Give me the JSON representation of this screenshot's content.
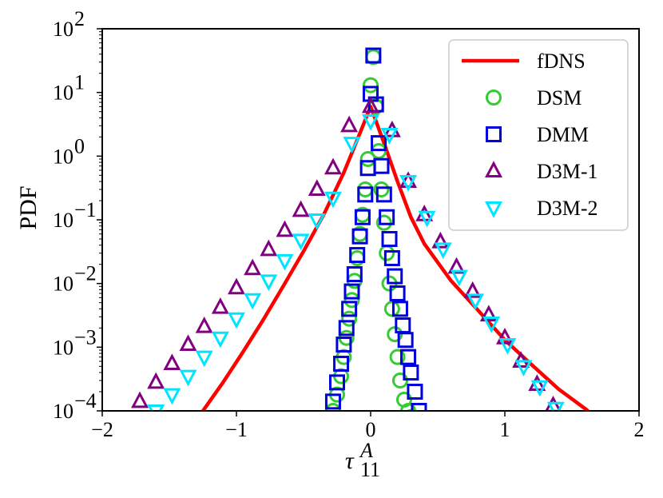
{
  "chart_data": {
    "type": "line",
    "xlabel": "τ",
    "xlabel_sup": "A",
    "xlabel_sub": "11",
    "ylabel": "PDF",
    "xlim": [
      -2,
      2
    ],
    "ylim": [
      0.0001,
      100
    ],
    "yscale": "log",
    "grid": false,
    "legend_position": "top-right",
    "x_ticks": [
      {
        "value": -2,
        "label": "−2"
      },
      {
        "value": -1,
        "label": "−1"
      },
      {
        "value": 0,
        "label": "0"
      },
      {
        "value": 1,
        "label": "1"
      },
      {
        "value": 2,
        "label": "2"
      }
    ],
    "y_ticks": [
      {
        "value": 0.0001,
        "base": "10",
        "exp": "−4"
      },
      {
        "value": 0.001,
        "base": "10",
        "exp": "−3"
      },
      {
        "value": 0.01,
        "base": "10",
        "exp": "−2"
      },
      {
        "value": 0.1,
        "base": "10",
        "exp": "−1"
      },
      {
        "value": 1,
        "base": "10",
        "exp": "0"
      },
      {
        "value": 10,
        "base": "10",
        "exp": "1"
      },
      {
        "value": 100,
        "base": "10",
        "exp": "2"
      }
    ],
    "series": [
      {
        "name": "fDNS",
        "marker": "line",
        "color": "#ff0000",
        "x": [
          -1.25,
          -1.1,
          -0.95,
          -0.8,
          -0.65,
          -0.5,
          -0.35,
          -0.2,
          -0.1,
          0.0,
          0.1,
          0.2,
          0.3,
          0.4,
          0.6,
          0.8,
          1.0,
          1.2,
          1.4,
          1.62
        ],
        "y": [
          0.0001,
          0.00028,
          0.00085,
          0.0027,
          0.0092,
          0.032,
          0.12,
          0.55,
          1.8,
          6.0,
          1.6,
          0.4,
          0.11,
          0.042,
          0.011,
          0.0038,
          0.0013,
          0.00053,
          0.00022,
          0.0001
        ]
      },
      {
        "name": "DSM",
        "marker": "circle",
        "color": "#33cc33",
        "x": [
          -0.28,
          -0.25,
          -0.22,
          -0.2,
          -0.18,
          -0.16,
          -0.14,
          -0.12,
          -0.1,
          -0.08,
          -0.06,
          -0.04,
          -0.02,
          0.0,
          0.02,
          0.04,
          0.06,
          0.08,
          0.1,
          0.12,
          0.14,
          0.16,
          0.18,
          0.2,
          0.22,
          0.25,
          0.28,
          0.3
        ],
        "y": [
          0.0001,
          0.00018,
          0.00035,
          0.0007,
          0.0014,
          0.0028,
          0.0055,
          0.011,
          0.025,
          0.06,
          0.12,
          0.3,
          0.9,
          13,
          36,
          6,
          1.2,
          0.3,
          0.09,
          0.03,
          0.01,
          0.004,
          0.0016,
          0.0007,
          0.0003,
          0.00015,
          0.0001,
          8e-05
        ]
      },
      {
        "name": "DMM",
        "marker": "square",
        "color": "#0000dd",
        "x": [
          -0.28,
          -0.25,
          -0.22,
          -0.2,
          -0.18,
          -0.16,
          -0.14,
          -0.12,
          -0.1,
          -0.08,
          -0.06,
          -0.04,
          -0.02,
          0.0,
          0.02,
          0.04,
          0.06,
          0.08,
          0.1,
          0.12,
          0.14,
          0.16,
          0.18,
          0.2,
          0.22,
          0.24,
          0.26,
          0.28,
          0.3,
          0.33,
          0.36
        ],
        "y": [
          0.00014,
          0.00028,
          0.00055,
          0.0011,
          0.002,
          0.004,
          0.0075,
          0.014,
          0.028,
          0.055,
          0.11,
          0.25,
          0.65,
          9.5,
          38,
          6.5,
          1.6,
          0.7,
          0.25,
          0.11,
          0.05,
          0.025,
          0.013,
          0.007,
          0.004,
          0.0022,
          0.0013,
          0.0007,
          0.0004,
          0.0002,
          0.0001
        ]
      },
      {
        "name": "D3M-1",
        "marker": "triangle-up",
        "color": "#800080",
        "x": [
          -1.72,
          -1.6,
          -1.48,
          -1.36,
          -1.24,
          -1.12,
          -1.0,
          -0.88,
          -0.76,
          -0.64,
          -0.52,
          -0.4,
          -0.28,
          -0.16,
          0.0,
          0.16,
          0.28,
          0.4,
          0.52,
          0.64,
          0.76,
          0.88,
          1.0,
          1.12,
          1.24,
          1.36
        ],
        "y": [
          0.00014,
          0.00028,
          0.00055,
          0.0011,
          0.0021,
          0.0042,
          0.0085,
          0.017,
          0.034,
          0.068,
          0.14,
          0.3,
          0.65,
          3.0,
          6.0,
          2.5,
          0.4,
          0.12,
          0.045,
          0.018,
          0.0075,
          0.0032,
          0.0014,
          0.0006,
          0.00026,
          0.00012
        ]
      },
      {
        "name": "D3M-2",
        "marker": "triangle-down",
        "color": "#00e5ff",
        "x": [
          -1.6,
          -1.48,
          -1.36,
          -1.24,
          -1.12,
          -1.0,
          -0.88,
          -0.76,
          -0.64,
          -0.52,
          -0.4,
          -0.28,
          -0.14,
          0.0,
          0.14,
          0.28,
          0.42,
          0.54,
          0.66,
          0.78,
          0.9,
          1.02,
          1.14,
          1.26,
          1.38
        ],
        "y": [
          0.0001,
          0.00018,
          0.00035,
          0.0007,
          0.0014,
          0.0028,
          0.0056,
          0.011,
          0.023,
          0.048,
          0.1,
          0.22,
          1.6,
          3.6,
          2.2,
          0.4,
          0.11,
          0.035,
          0.013,
          0.0055,
          0.0024,
          0.0011,
          0.0005,
          0.00024,
          0.00011
        ]
      }
    ]
  }
}
